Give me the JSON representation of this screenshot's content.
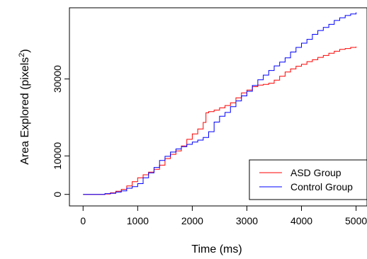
{
  "chart_data": {
    "type": "line",
    "xlabel": "Time (ms)",
    "ylabel": "Area Explored (pixels",
    "ylabel_sup": "2",
    "ylabel_close": ")",
    "xlim": [
      -250,
      5200
    ],
    "ylim": [
      -3000,
      48500
    ],
    "x_ticks": [
      0,
      1000,
      2000,
      3000,
      4000,
      5000
    ],
    "y_ticks": [
      0,
      10000,
      30000
    ],
    "y_tick_labels": [
      "0",
      "10000",
      "30000"
    ],
    "grid": false,
    "legend_position": "bottom-right",
    "series": [
      {
        "name": "ASD Group",
        "color": "#ff0000",
        "points": [
          [
            0,
            0
          ],
          [
            300,
            0
          ],
          [
            400,
            100
          ],
          [
            500,
            400
          ],
          [
            600,
            800
          ],
          [
            700,
            1300
          ],
          [
            800,
            2200
          ],
          [
            900,
            3300
          ],
          [
            1000,
            4300
          ],
          [
            1100,
            5100
          ],
          [
            1200,
            5800
          ],
          [
            1300,
            6500
          ],
          [
            1400,
            7600
          ],
          [
            1500,
            9300
          ],
          [
            1600,
            10400
          ],
          [
            1700,
            11300
          ],
          [
            1800,
            12600
          ],
          [
            1900,
            14300
          ],
          [
            2000,
            15700
          ],
          [
            2100,
            17000
          ],
          [
            2200,
            18700
          ],
          [
            2250,
            21200
          ],
          [
            2300,
            21500
          ],
          [
            2400,
            21900
          ],
          [
            2500,
            22500
          ],
          [
            2600,
            23100
          ],
          [
            2700,
            23800
          ],
          [
            2800,
            25100
          ],
          [
            2900,
            26400
          ],
          [
            3000,
            27100
          ],
          [
            3100,
            28000
          ],
          [
            3200,
            28400
          ],
          [
            3300,
            28600
          ],
          [
            3400,
            28900
          ],
          [
            3500,
            29700
          ],
          [
            3600,
            30700
          ],
          [
            3700,
            31800
          ],
          [
            3800,
            32600
          ],
          [
            3900,
            33300
          ],
          [
            4000,
            33800
          ],
          [
            4100,
            34500
          ],
          [
            4200,
            35000
          ],
          [
            4300,
            35600
          ],
          [
            4400,
            36100
          ],
          [
            4500,
            36700
          ],
          [
            4600,
            37200
          ],
          [
            4700,
            37700
          ],
          [
            4800,
            37900
          ],
          [
            4900,
            38200
          ],
          [
            5000,
            38400
          ]
        ]
      },
      {
        "name": "Control Group",
        "color": "#0000ff",
        "points": [
          [
            0,
            0
          ],
          [
            350,
            0
          ],
          [
            400,
            200
          ],
          [
            500,
            300
          ],
          [
            600,
            600
          ],
          [
            700,
            900
          ],
          [
            800,
            1600
          ],
          [
            900,
            2000
          ],
          [
            1000,
            2800
          ],
          [
            1100,
            4300
          ],
          [
            1200,
            5600
          ],
          [
            1300,
            7000
          ],
          [
            1400,
            8800
          ],
          [
            1500,
            9900
          ],
          [
            1600,
            11000
          ],
          [
            1700,
            11800
          ],
          [
            1800,
            12400
          ],
          [
            1900,
            13000
          ],
          [
            2000,
            13600
          ],
          [
            2100,
            14100
          ],
          [
            2200,
            14800
          ],
          [
            2300,
            16300
          ],
          [
            2400,
            18800
          ],
          [
            2500,
            20300
          ],
          [
            2600,
            21300
          ],
          [
            2700,
            22800
          ],
          [
            2800,
            24300
          ],
          [
            2900,
            25600
          ],
          [
            3000,
            26800
          ],
          [
            3100,
            28300
          ],
          [
            3200,
            29800
          ],
          [
            3300,
            31000
          ],
          [
            3400,
            32200
          ],
          [
            3500,
            33400
          ],
          [
            3600,
            34400
          ],
          [
            3700,
            35500
          ],
          [
            3800,
            37000
          ],
          [
            3900,
            38200
          ],
          [
            4000,
            39300
          ],
          [
            4100,
            40300
          ],
          [
            4200,
            41600
          ],
          [
            4300,
            42600
          ],
          [
            4400,
            43400
          ],
          [
            4500,
            44200
          ],
          [
            4600,
            45200
          ],
          [
            4700,
            45900
          ],
          [
            4800,
            46500
          ],
          [
            4900,
            46900
          ],
          [
            5000,
            47300
          ]
        ]
      }
    ]
  }
}
